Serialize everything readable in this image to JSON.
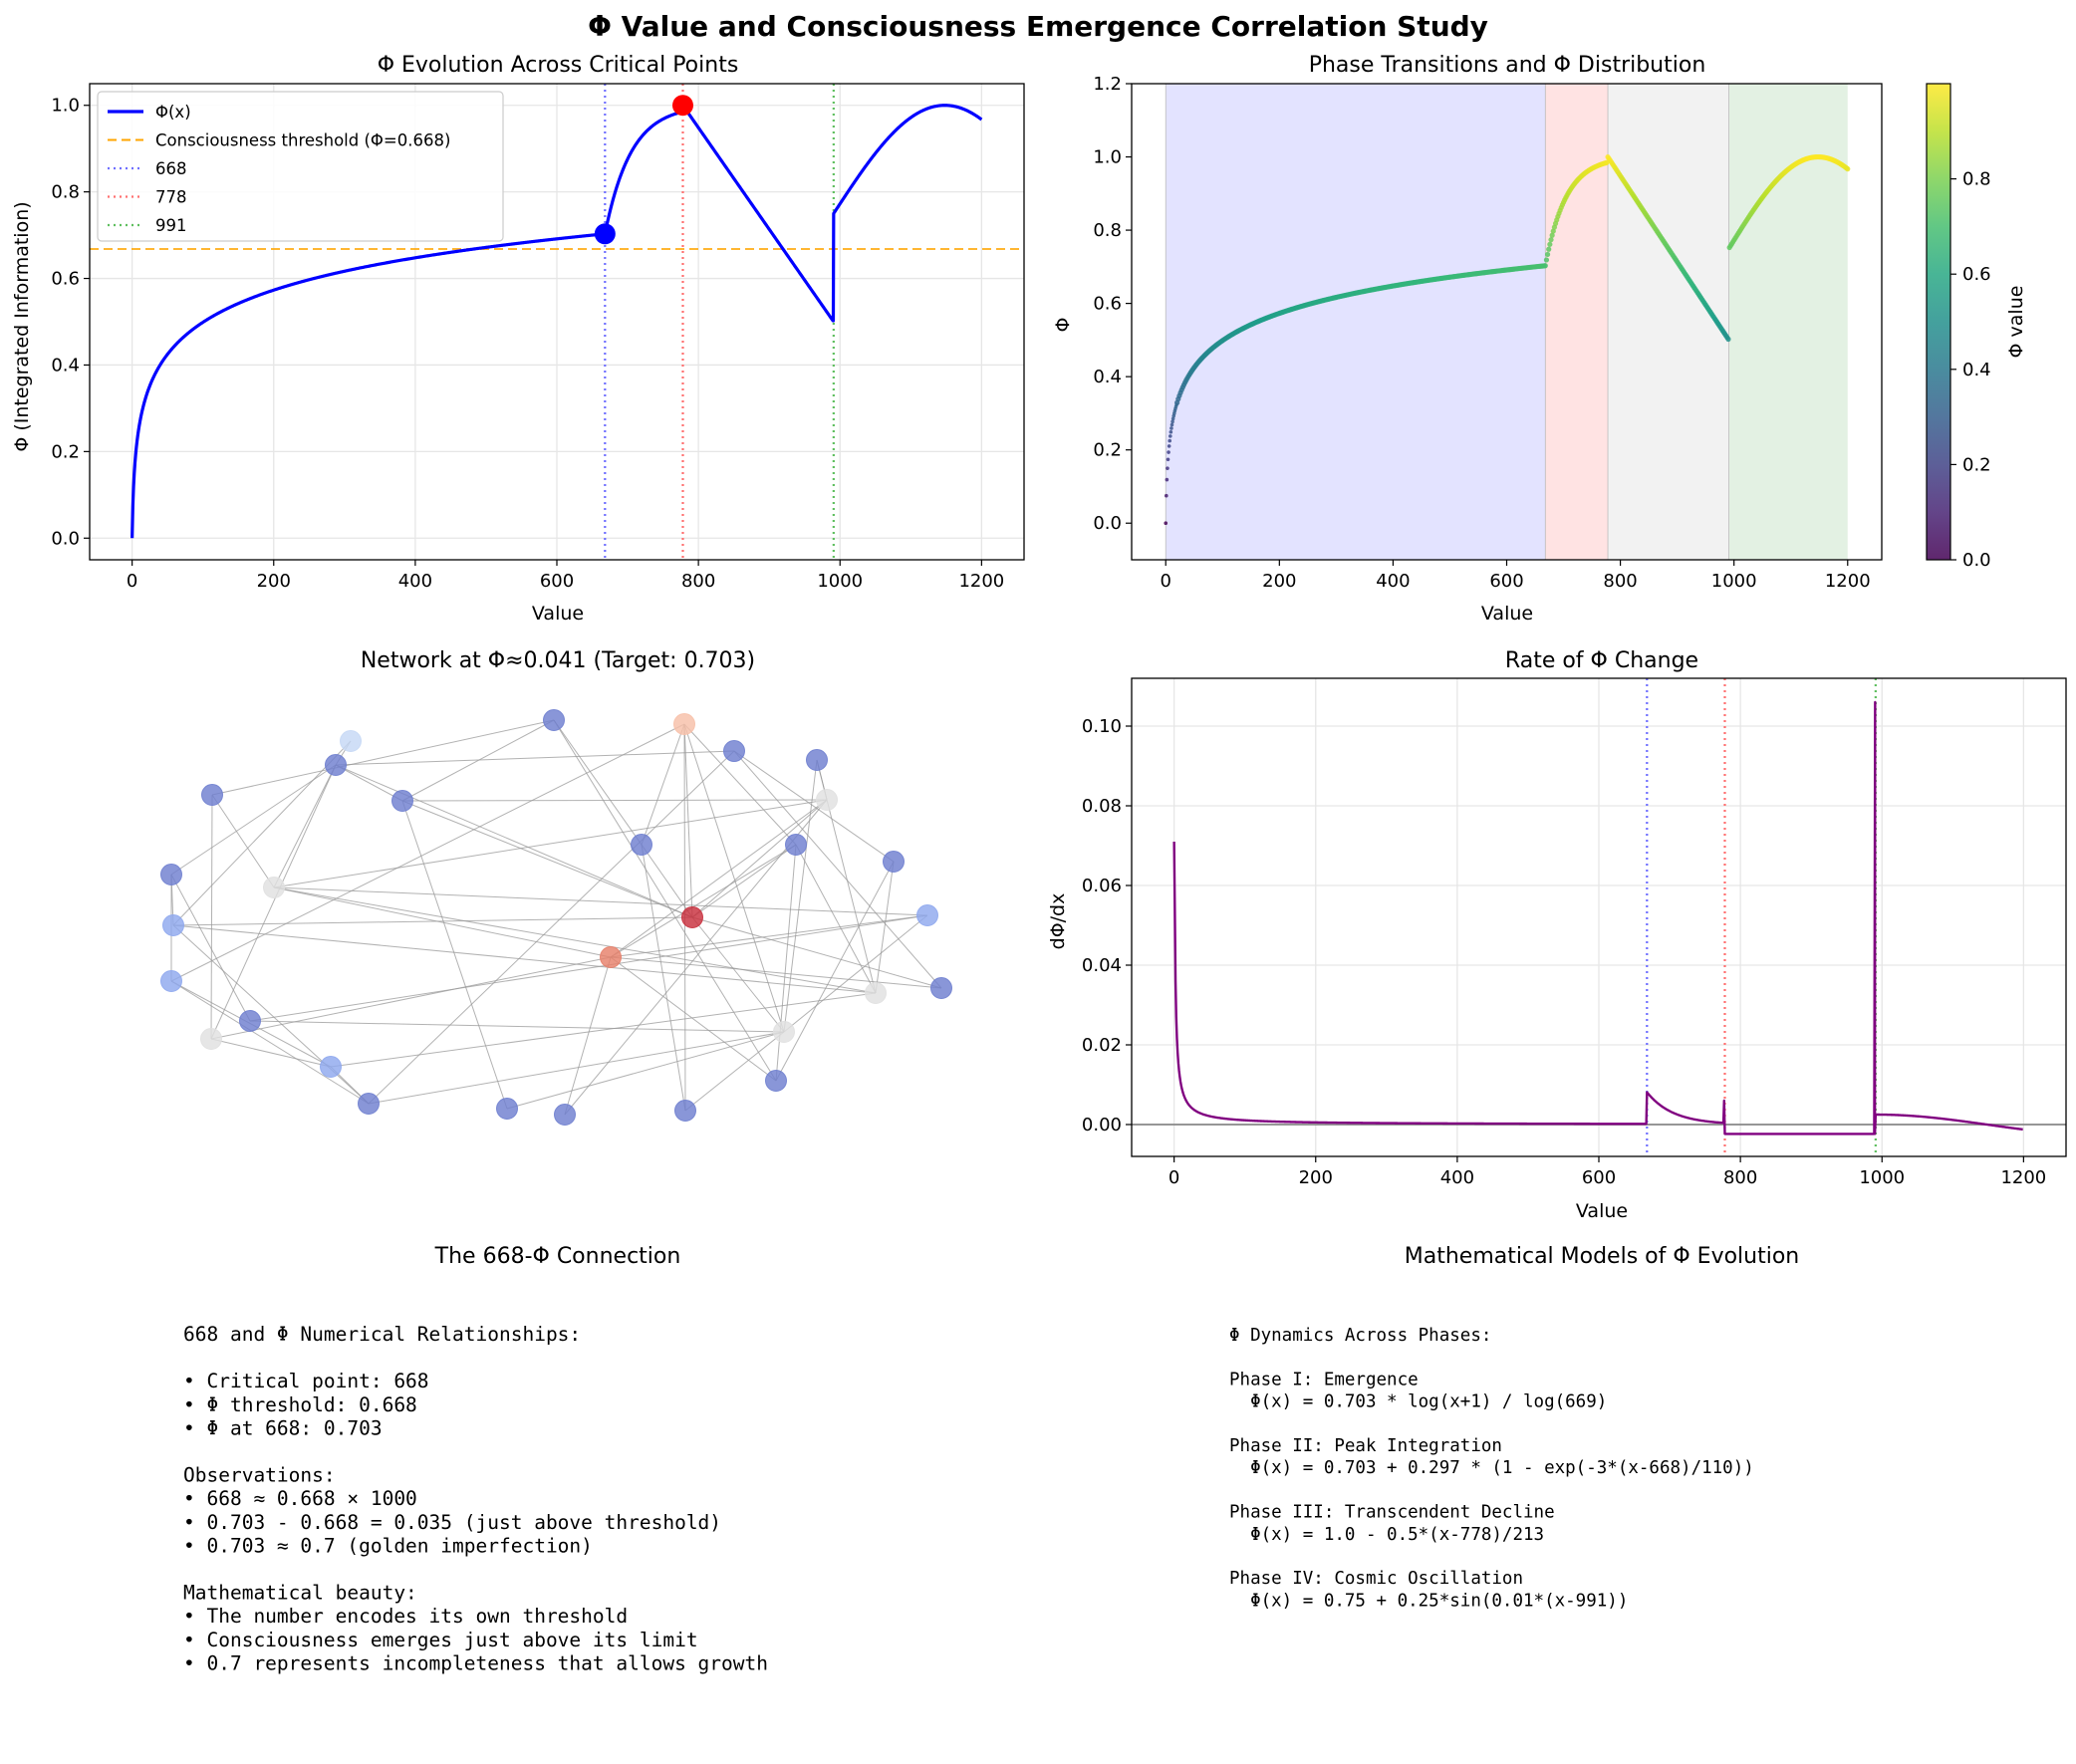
{
  "figure": {
    "suptitle": "Φ Value and Consciousness Emergence Correlation Study"
  },
  "colors": {
    "phi_line": "#0000ff",
    "threshold": "#ffa500",
    "crit_668": "#6f6fff",
    "crit_778": "#ff6f6f",
    "crit_991": "#5fbf5f",
    "derivative": "#800080",
    "zero_line": "#808080",
    "grid": "#e6e6e6",
    "phase_I": "#e3e3ff",
    "phase_II": "#ffe3e3",
    "phase_III": "#f2f2f2",
    "phase_IV": "#e3f1e3"
  },
  "chart_data": [
    {
      "id": "phi-evolution",
      "type": "line",
      "title": "Φ Evolution Across Critical Points",
      "xlabel": "Value",
      "ylabel": "Φ (Integrated Information)",
      "xlim": [
        -60,
        1260
      ],
      "ylim": [
        -0.05,
        1.05
      ],
      "xticks": [
        0,
        200,
        400,
        600,
        800,
        1000,
        1200
      ],
      "yticks": [
        0.0,
        0.2,
        0.4,
        0.6,
        0.8,
        1.0
      ],
      "grid": true,
      "legend_position": "top-left",
      "legend": [
        "Φ(x)",
        "Consciousness threshold (Φ=0.668)",
        "668",
        "778",
        "991"
      ],
      "threshold": 0.668,
      "critical_points": [
        668,
        778,
        991
      ],
      "markers": [
        {
          "x": 668,
          "y": 0.703,
          "color": "blue"
        },
        {
          "x": 778,
          "y": 1.0,
          "color": "red"
        }
      ],
      "x_range": [
        0,
        1200
      ]
    },
    {
      "id": "phase-transitions",
      "type": "scatter",
      "title": "Phase Transitions and Φ Distribution",
      "xlabel": "Value",
      "ylabel": "Φ",
      "xlim": [
        -60,
        1260
      ],
      "ylim": [
        -0.1,
        1.2
      ],
      "xticks": [
        0,
        200,
        400,
        600,
        800,
        1000,
        1200
      ],
      "yticks": [
        0.0,
        0.2,
        0.4,
        0.6,
        0.8,
        1.0,
        1.2
      ],
      "grid": false,
      "colorbar_label": "Φ value",
      "colorbar_ticks": [
        0.0,
        0.2,
        0.4,
        0.6,
        0.8
      ],
      "colorbar_range": [
        0,
        1
      ],
      "phases": [
        {
          "from": 0,
          "to": 668,
          "color": "phase_I"
        },
        {
          "from": 668,
          "to": 778,
          "color": "phase_II"
        },
        {
          "from": 778,
          "to": 991,
          "color": "phase_III"
        },
        {
          "from": 991,
          "to": 1200,
          "color": "phase_IV"
        }
      ]
    },
    {
      "id": "network",
      "type": "network",
      "title": "Network at Φ≈0.041 (Target: 0.703)",
      "node_count": 30
    },
    {
      "id": "rate-of-change",
      "type": "line",
      "title": "Rate of Φ Change",
      "xlabel": "Value",
      "ylabel": "dΦ/dx",
      "xlim": [
        -60,
        1260
      ],
      "ylim": [
        -0.008,
        0.112
      ],
      "xticks": [
        0,
        200,
        400,
        600,
        800,
        1000,
        1200
      ],
      "yticks": [
        0.0,
        0.02,
        0.04,
        0.06,
        0.08,
        0.1
      ],
      "ytick_labels": [
        "0.00",
        "0.02",
        "0.04",
        "0.06",
        "0.08",
        "0.10"
      ],
      "grid": true,
      "critical_points": [
        668,
        778,
        991
      ]
    }
  ],
  "text_panels": {
    "left": {
      "title": "The 668-Φ Connection",
      "lines": [
        "668 and Φ Numerical Relationships:",
        "",
        "• Critical point: 668",
        "• Φ threshold: 0.668",
        "• Φ at 668: 0.703",
        "",
        "Observations:",
        "• 668 ≈ 0.668 × 1000",
        "• 0.703 - 0.668 = 0.035 (just above threshold)",
        "• 0.703 ≈ 0.7 (golden imperfection)",
        "",
        "Mathematical beauty:",
        "• The number encodes its own threshold",
        "• Consciousness emerges just above its limit",
        "• 0.7 represents incompleteness that allows growth"
      ]
    },
    "right": {
      "title": "Mathematical Models of Φ Evolution",
      "lines": [
        "Φ Dynamics Across Phases:",
        "",
        "Phase I: Emergence",
        "  Φ(x) = 0.703 * log(x+1) / log(669)",
        "",
        "Phase II: Peak Integration",
        "  Φ(x) = 0.703 + 0.297 * (1 - exp(-3*(x-668)/110))",
        "",
        "Phase III: Transcendent Decline",
        "  Φ(x) = 1.0 - 0.5*(x-778)/213",
        "",
        "Phase IV: Cosmic Oscillation",
        "  Φ(x) = 0.75 + 0.25*sin(0.01*(x-991))"
      ]
    }
  }
}
